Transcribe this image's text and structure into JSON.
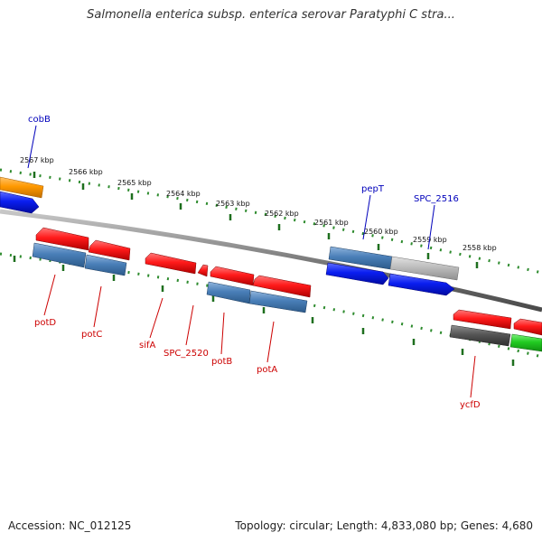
{
  "title": "Salmonella enterica subsp. enterica serovar Paratyphi C stra...",
  "accession": "Accession: NC_012125",
  "summary": "Topology: circular; Length: 4,833,080 bp; Genes: 4,680",
  "colors": {
    "backbone": "#8a8a8a",
    "tick_outer": "#2e8b2e",
    "tick_major": "#1e6f1e",
    "gene_label_blue": "#0000bb",
    "gene_label_red": "#cc0000",
    "feature_red": "#ff1a1a",
    "feature_steelblue": "#4a7fb8",
    "feature_blue": "#0a1ef0",
    "feature_orange": "#ff9900",
    "feature_gray": "#bdbdbd",
    "feature_darkgray": "#555555",
    "feature_green": "#22cc22"
  },
  "kbp_labels": [
    "2567 kbp",
    "2566 kbp",
    "2565 kbp",
    "2564 kbp",
    "2563 kbp",
    "2562 kbp",
    "2561 kbp",
    "2560 kbp",
    "2559 kbp",
    "2558 kbp"
  ],
  "gene_labels": [
    "cobB",
    "pepT",
    "SPC_2516",
    "potD",
    "potC",
    "sifA",
    "SPC_2520",
    "potB",
    "potA",
    "ycfD"
  ]
}
